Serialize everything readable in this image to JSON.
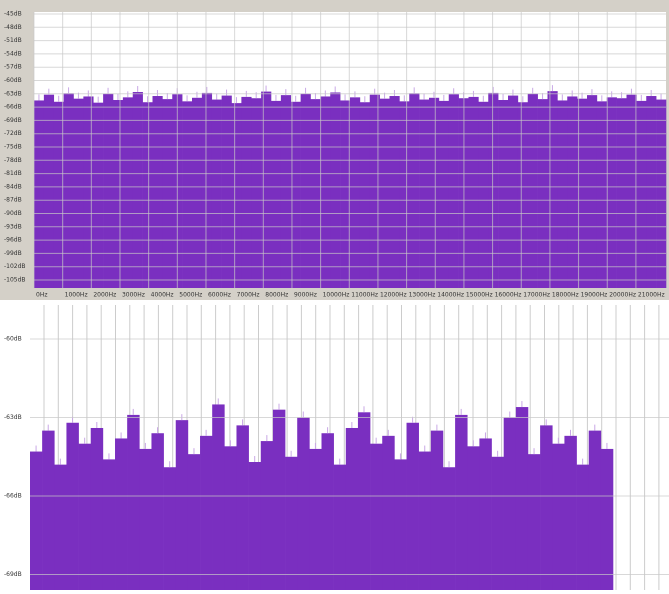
{
  "chart_data": [
    {
      "type": "bar",
      "color": "#7a2fc0",
      "grid": true,
      "ylim": [
        -105,
        -45
      ],
      "yticks": [
        {
          "value": -45,
          "label": "-45dB"
        },
        {
          "value": -48,
          "label": "-48dB"
        },
        {
          "value": -51,
          "label": "-51dB"
        },
        {
          "value": -54,
          "label": "-54dB"
        },
        {
          "value": -57,
          "label": "-57dB"
        },
        {
          "value": -60,
          "label": "-60dB"
        },
        {
          "value": -63,
          "label": "-63dB"
        },
        {
          "value": -66,
          "label": "-66dB"
        },
        {
          "value": -69,
          "label": "-69dB"
        },
        {
          "value": -72,
          "label": "-72dB"
        },
        {
          "value": -75,
          "label": "-75dB"
        },
        {
          "value": -78,
          "label": "-78dB"
        },
        {
          "value": -81,
          "label": "-81dB"
        },
        {
          "value": -84,
          "label": "-84dB"
        },
        {
          "value": -87,
          "label": "-87dB"
        },
        {
          "value": -90,
          "label": "-90dB"
        },
        {
          "value": -93,
          "label": "-93dB"
        },
        {
          "value": -96,
          "label": "-96dB"
        },
        {
          "value": -99,
          "label": "-99dB"
        },
        {
          "value": -102,
          "label": "-102dB"
        },
        {
          "value": -105,
          "label": "-105dB"
        }
      ],
      "xlim": [
        0,
        22050
      ],
      "xticks": [
        {
          "value": 0,
          "label": "0Hz"
        },
        {
          "value": 1000,
          "label": "1000Hz"
        },
        {
          "value": 2000,
          "label": "2000Hz"
        },
        {
          "value": 3000,
          "label": "3000Hz"
        },
        {
          "value": 4000,
          "label": "4000Hz"
        },
        {
          "value": 5000,
          "label": "5000Hz"
        },
        {
          "value": 6000,
          "label": "6000Hz"
        },
        {
          "value": 7000,
          "label": "7000Hz"
        },
        {
          "value": 8000,
          "label": "8000Hz"
        },
        {
          "value": 9000,
          "label": "9000Hz"
        },
        {
          "value": 10000,
          "label": "10000Hz"
        },
        {
          "value": 11000,
          "label": "11000Hz"
        },
        {
          "value": 12000,
          "label": "12000Hz"
        },
        {
          "value": 13000,
          "label": "13000Hz"
        },
        {
          "value": 14000,
          "label": "14000Hz"
        },
        {
          "value": 15000,
          "label": "15000Hz"
        },
        {
          "value": 16000,
          "label": "16000Hz"
        },
        {
          "value": 17000,
          "label": "17000Hz"
        },
        {
          "value": 18000,
          "label": "18000Hz"
        },
        {
          "value": 19000,
          "label": "19000Hz"
        },
        {
          "value": 20000,
          "label": "20000Hz"
        },
        {
          "value": 21000,
          "label": "21000Hz"
        }
      ],
      "values": [
        -64.5,
        -63.2,
        -64.8,
        -62.9,
        -64.1,
        -63.6,
        -65.0,
        -63.0,
        -64.4,
        -63.8,
        -62.6,
        -64.9,
        -63.5,
        -64.2,
        -63.1,
        -64.7,
        -63.9,
        -62.8,
        -64.3,
        -63.4,
        -65.1,
        -63.7,
        -64.0,
        -62.5,
        -64.6,
        -63.3,
        -64.8,
        -63.0,
        -64.2,
        -63.6,
        -62.7,
        -64.5,
        -63.8,
        -64.9,
        -63.2,
        -64.1,
        -63.5,
        -64.7,
        -62.9,
        -64.3,
        -63.9,
        -64.6,
        -63.1,
        -64.0,
        -63.7,
        -64.8,
        -62.8,
        -64.4,
        -63.4,
        -64.9,
        -63.0,
        -64.2,
        -62.4,
        -64.5,
        -63.6,
        -64.1,
        -63.3,
        -64.7,
        -63.8,
        -64.0,
        -63.2,
        -64.6,
        -63.5,
        -64.3
      ]
    },
    {
      "type": "bar",
      "color": "#7a2fc0",
      "grid": true,
      "ylim": [
        -69.4,
        -58.7
      ],
      "yticks": [
        {
          "value": -60,
          "label": "-60dB"
        },
        {
          "value": -63,
          "label": "-63dB"
        },
        {
          "value": -66,
          "label": "-66dB"
        },
        {
          "value": -69,
          "label": "-69dB"
        }
      ],
      "values": [
        -64.3,
        -63.5,
        -64.8,
        -63.2,
        -64.0,
        -63.4,
        -64.6,
        -63.8,
        -62.9,
        -64.2,
        -63.6,
        -64.9,
        -63.1,
        -64.4,
        -63.7,
        -62.5,
        -64.1,
        -63.3,
        -64.7,
        -63.9,
        -62.7,
        -64.5,
        -63.0,
        -64.2,
        -63.6,
        -64.8,
        -63.4,
        -62.8,
        -64.0,
        -63.7,
        -64.6,
        -63.2,
        -64.3,
        -63.5,
        -64.9,
        -62.9,
        -64.1,
        -63.8,
        -64.5,
        -63.0,
        -62.6,
        -64.4,
        -63.3,
        -64.0,
        -63.7,
        -64.8,
        -63.5,
        -64.2
      ]
    }
  ]
}
